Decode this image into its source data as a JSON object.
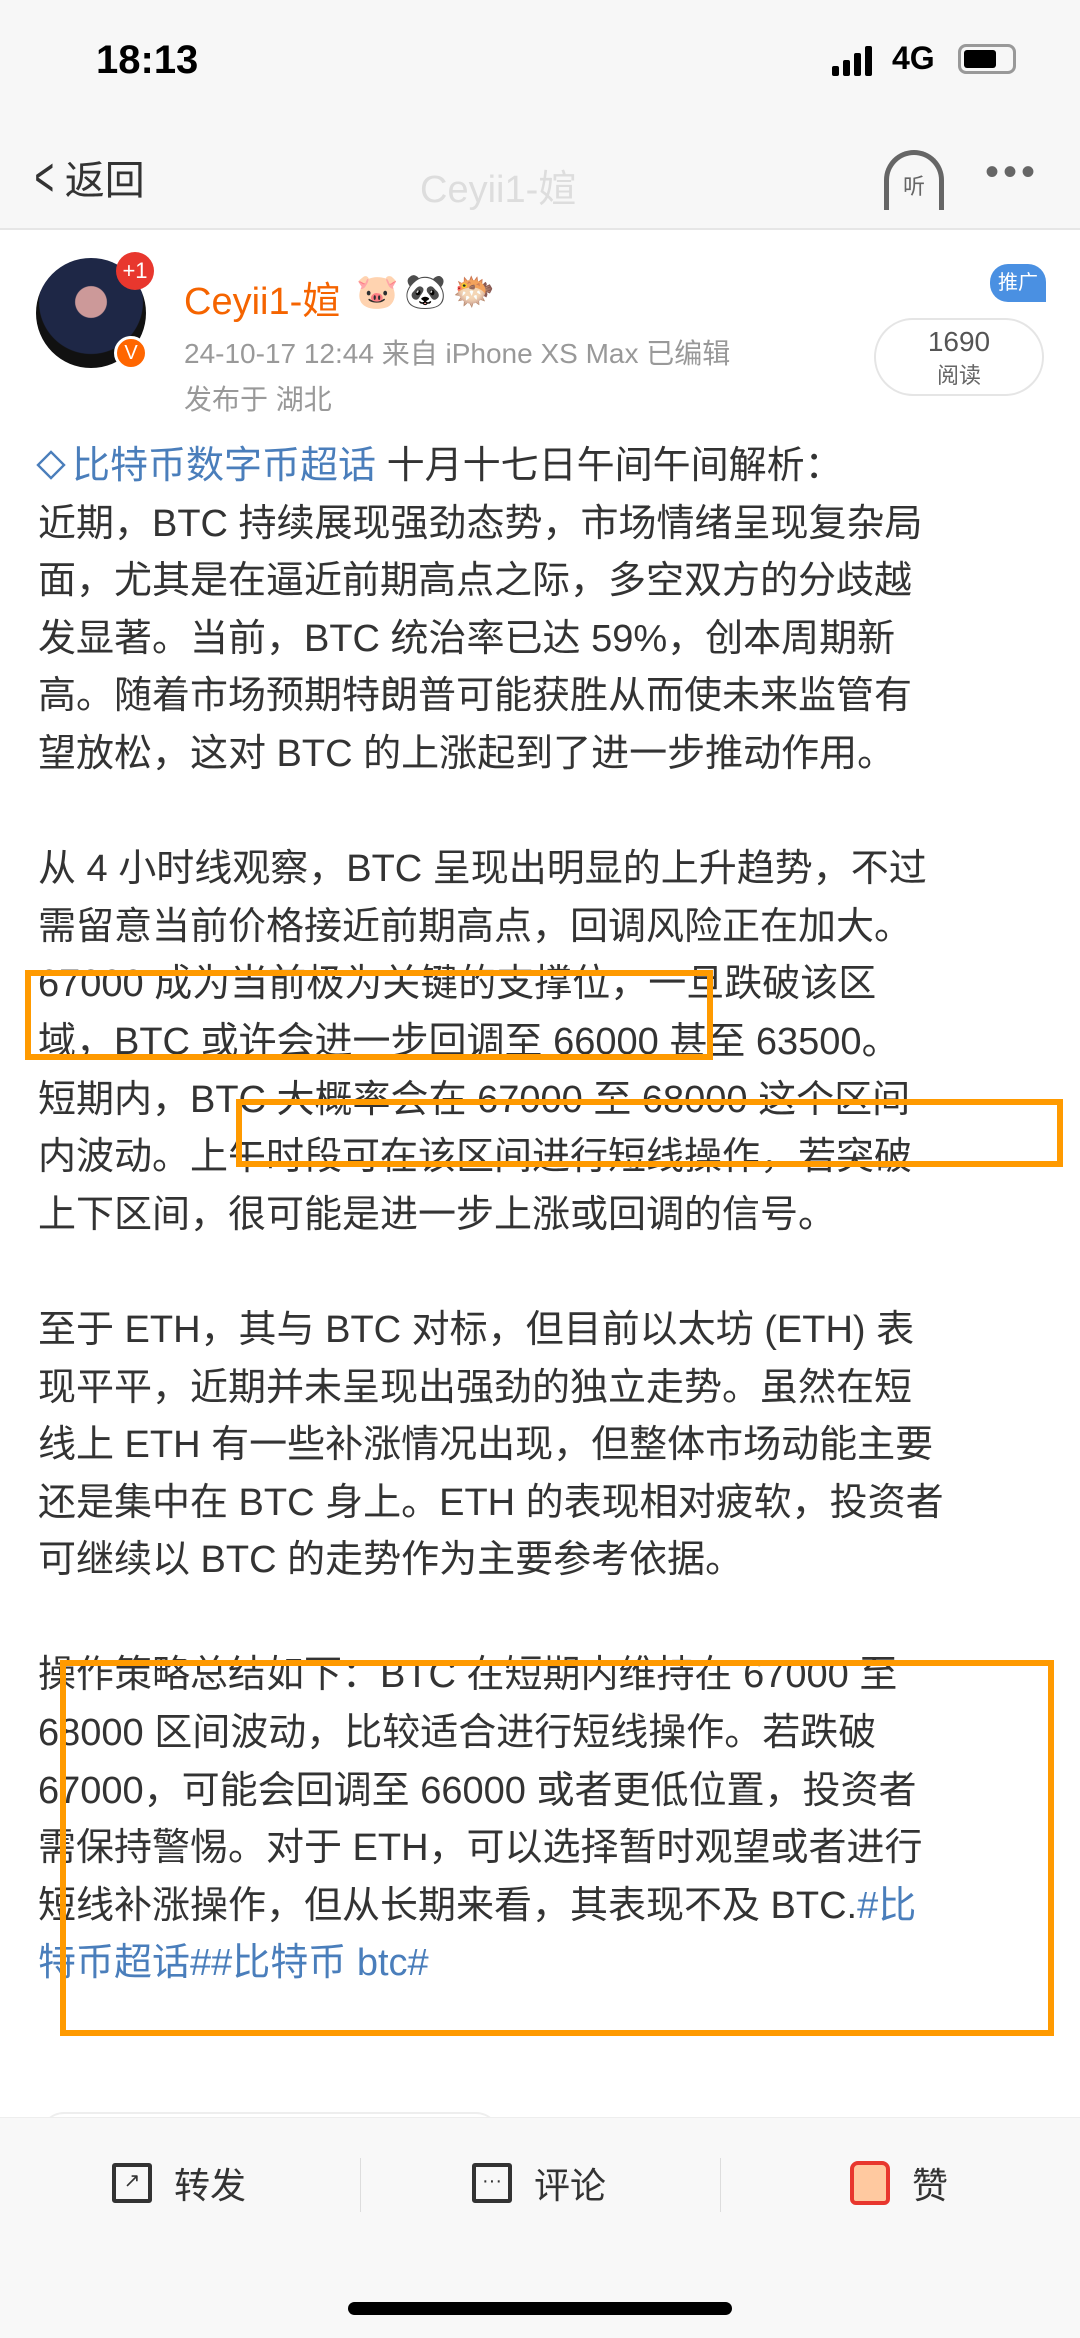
{
  "status_bar": {
    "time": "18:13",
    "network": "4G",
    "battery_level": 0.7
  },
  "nav": {
    "back_label": "返回",
    "title": "Ceyii1-媗",
    "listen_label": "听",
    "more_label": "•••"
  },
  "post": {
    "author": "Ceyii1-媗",
    "avatar_badge": "+1",
    "verified_badge": "V",
    "badges": [
      "🐷",
      "🐼",
      "🐡"
    ],
    "meta": "24-10-17 12:44  来自 iPhone XS Max  已编辑",
    "location": "发布于 湖北",
    "reads_count": "1690",
    "reads_label": "阅读",
    "promo_label": "推广",
    "topic_link": "比特币数字币超话",
    "paragraphs": [
      [
        "十月十七日午间午间解析：",
        "近期，BTC 持续展现强劲态势，市场情绪呈现复杂局",
        "面，尤其是在逼近前期高点之际，多空双方的分歧越",
        "发显著。当前，BTC 统治率已达 59%，创本周期新",
        "高。随着市场预期特朗普可能获胜从而使未来监管有",
        "望放松，这对 BTC 的上涨起到了进一步推动作用。"
      ],
      [
        "从 4 小时线观察，BTC 呈现出明显的上升趋势，不过",
        "需留意当前价格接近前期高点，回调风险正在加大。",
        "67000 成为当前极为关键的支撑位，一旦跌破该区",
        "域，BTC 或许会进一步回调至 66000 甚至 63500。",
        "短期内，BTC 大概率会在 67000 至 68000 这个区间",
        "内波动。上午时段可在该区间进行短线操作，若突破",
        "上下区间，很可能是进一步上涨或回调的信号。"
      ],
      [
        "至于 ETH，其与 BTC 对标，但目前以太坊 (ETH) 表",
        "现平平，近期并未呈现出强劲的独立走势。虽然在短",
        "线上 ETH 有一些补涨情况出现，但整体市场动能主要",
        "还是集中在 BTC 身上。ETH 的表现相对疲软，投资者",
        "可继续以 BTC 的走势作为主要参考依据。"
      ],
      [
        "操作策略总结如下：BTC 在短期内维持在 67000 至",
        "68000 区间波动，比较适合进行短线操作。若跌破",
        "67000，可能会回调至 66000 或者更低位置，投资者",
        "需保持警惕。对于 ETH，可以选择暂时观望或者进行",
        "短线补涨操作，但从长期来看，其表现不及 BTC."
      ]
    ],
    "hashtag_tail_1": "#比",
    "hashtag_tail_2": "特币超话##比特币 btc#"
  },
  "actions": {
    "repost": "转发",
    "comment": "评论",
    "like": "赞"
  },
  "colors": {
    "highlight_box": "#ff9a00",
    "link": "#4a7ebb",
    "author": "#f56400"
  }
}
